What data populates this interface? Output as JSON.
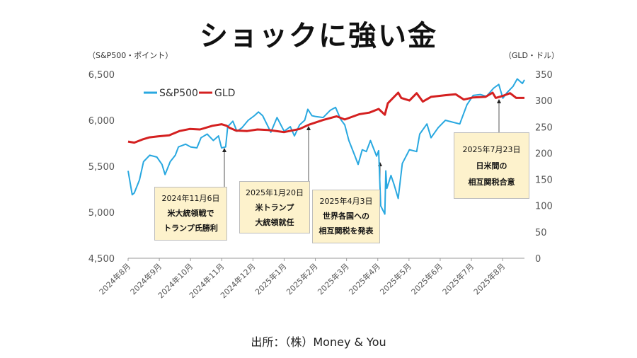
{
  "title": "ショックに強い金",
  "unit_left": "（S&P500・ポイント）",
  "unit_right": "（GLD・ドル）",
  "source": "出所：（株）Money & You",
  "colors": {
    "sp500": "#29a8e0",
    "gld": "#d42020",
    "note_bg": "#fdf2cc"
  },
  "chart_data": {
    "type": "line",
    "x_tick_labels": [
      "2024年8月",
      "2024年9月",
      "2024年10月",
      "2024年11月",
      "2024年12月",
      "2025年1月",
      "2025年2月",
      "2025年3月",
      "2025年4月",
      "2025年5月",
      "2025年6月",
      "2025年7月",
      "2025年8月"
    ],
    "y_left_ticks": [
      "6,500",
      "6,000",
      "5,500",
      "5,000",
      "4,500"
    ],
    "y_right_ticks": [
      "350",
      "300",
      "250",
      "200",
      "150",
      "100",
      "50",
      "0"
    ],
    "ylim_left": [
      4500,
      6500
    ],
    "ylim_right": [
      0,
      350
    ],
    "legend_position": "top-left",
    "grid": false,
    "series": [
      {
        "name": "S&P500",
        "axis": "left",
        "x": [
          "2024-08-01",
          "2024-08-05",
          "2024-08-07",
          "2024-08-12",
          "2024-08-16",
          "2024-08-22",
          "2024-08-29",
          "2024-09-03",
          "2024-09-06",
          "2024-09-11",
          "2024-09-16",
          "2024-09-19",
          "2024-09-26",
          "2024-10-01",
          "2024-10-07",
          "2024-10-11",
          "2024-10-17",
          "2024-10-23",
          "2024-10-28",
          "2024-10-31",
          "2024-11-04",
          "2024-11-06",
          "2024-11-11",
          "2024-11-15",
          "2024-11-20",
          "2024-11-26",
          "2024-12-02",
          "2024-12-06",
          "2024-12-10",
          "2024-12-18",
          "2024-12-24",
          "2024-12-31",
          "2025-01-06",
          "2025-01-10",
          "2025-01-15",
          "2025-01-20",
          "2025-01-23",
          "2025-01-27",
          "2025-01-31",
          "2025-02-07",
          "2025-02-14",
          "2025-02-19",
          "2025-02-24",
          "2025-02-28",
          "2025-03-04",
          "2025-03-10",
          "2025-03-13",
          "2025-03-17",
          "2025-03-21",
          "2025-03-25",
          "2025-03-31",
          "2025-04-02",
          "2025-04-04",
          "2025-04-08",
          "2025-04-09",
          "2025-04-10",
          "2025-04-14",
          "2025-04-17",
          "2025-04-21",
          "2025-04-25",
          "2025-05-02",
          "2025-05-09",
          "2025-05-12",
          "2025-05-19",
          "2025-05-23",
          "2025-05-30",
          "2025-06-06",
          "2025-06-13",
          "2025-06-20",
          "2025-06-27",
          "2025-07-03",
          "2025-07-10",
          "2025-07-16",
          "2025-07-23",
          "2025-07-28",
          "2025-08-01",
          "2025-08-05",
          "2025-08-11",
          "2025-08-15",
          "2025-08-20",
          "2025-08-22"
        ],
        "values": [
          5450,
          5190,
          5210,
          5350,
          5550,
          5620,
          5600,
          5520,
          5410,
          5550,
          5620,
          5710,
          5740,
          5710,
          5700,
          5810,
          5850,
          5780,
          5830,
          5700,
          5710,
          5930,
          5990,
          5880,
          5920,
          6000,
          6050,
          6090,
          6050,
          5870,
          6030,
          5880,
          5930,
          5830,
          5950,
          6000,
          6120,
          6050,
          6040,
          6030,
          6110,
          6140,
          6010,
          5950,
          5780,
          5610,
          5520,
          5680,
          5660,
          5780,
          5610,
          5670,
          5070,
          4980,
          5450,
          5260,
          5400,
          5300,
          5150,
          5530,
          5680,
          5660,
          5850,
          5960,
          5810,
          5920,
          6000,
          5980,
          5960,
          6170,
          6270,
          6280,
          6260,
          6350,
          6390,
          6240,
          6300,
          6370,
          6450,
          6400,
          6440
        ]
      },
      {
        "name": "GLD",
        "axis": "right",
        "x": [
          "2024-08-01",
          "2024-08-07",
          "2024-08-15",
          "2024-08-22",
          "2024-08-30",
          "2024-09-10",
          "2024-09-20",
          "2024-09-30",
          "2024-10-10",
          "2024-10-22",
          "2024-10-31",
          "2024-11-05",
          "2024-11-08",
          "2024-11-14",
          "2024-11-25",
          "2024-12-05",
          "2024-12-15",
          "2024-12-31",
          "2025-01-15",
          "2025-01-24",
          "2025-02-07",
          "2025-02-20",
          "2025-02-28",
          "2025-03-14",
          "2025-03-24",
          "2025-04-02",
          "2025-04-08",
          "2025-04-11",
          "2025-04-21",
          "2025-04-24",
          "2025-05-02",
          "2025-05-09",
          "2025-05-15",
          "2025-05-23",
          "2025-06-05",
          "2025-06-16",
          "2025-06-24",
          "2025-07-03",
          "2025-07-15",
          "2025-07-22",
          "2025-07-25",
          "2025-08-01",
          "2025-08-08",
          "2025-08-14",
          "2025-08-22"
        ],
        "values": [
          222,
          220,
          226,
          230,
          232,
          234,
          242,
          246,
          245,
          252,
          255,
          252,
          248,
          243,
          242,
          245,
          244,
          240,
          246,
          254,
          263,
          270,
          264,
          274,
          277,
          284,
          273,
          295,
          315,
          305,
          300,
          314,
          298,
          307,
          310,
          312,
          302,
          306,
          307,
          315,
          305,
          309,
          314,
          305,
          305
        ]
      }
    ],
    "annotations": [
      {
        "date": "2024年11月6日",
        "lines": [
          "米大統領戦で",
          "トランプ氏勝利"
        ]
      },
      {
        "date": "2025年1月20日",
        "lines": [
          "米トランプ",
          "大統領就任"
        ]
      },
      {
        "date": "2025年4月3日",
        "lines": [
          "世界各国への",
          "相互関税を発表"
        ]
      },
      {
        "date": "2025年7月23日",
        "lines": [
          "日米間の",
          "相互関税合意"
        ]
      }
    ]
  }
}
